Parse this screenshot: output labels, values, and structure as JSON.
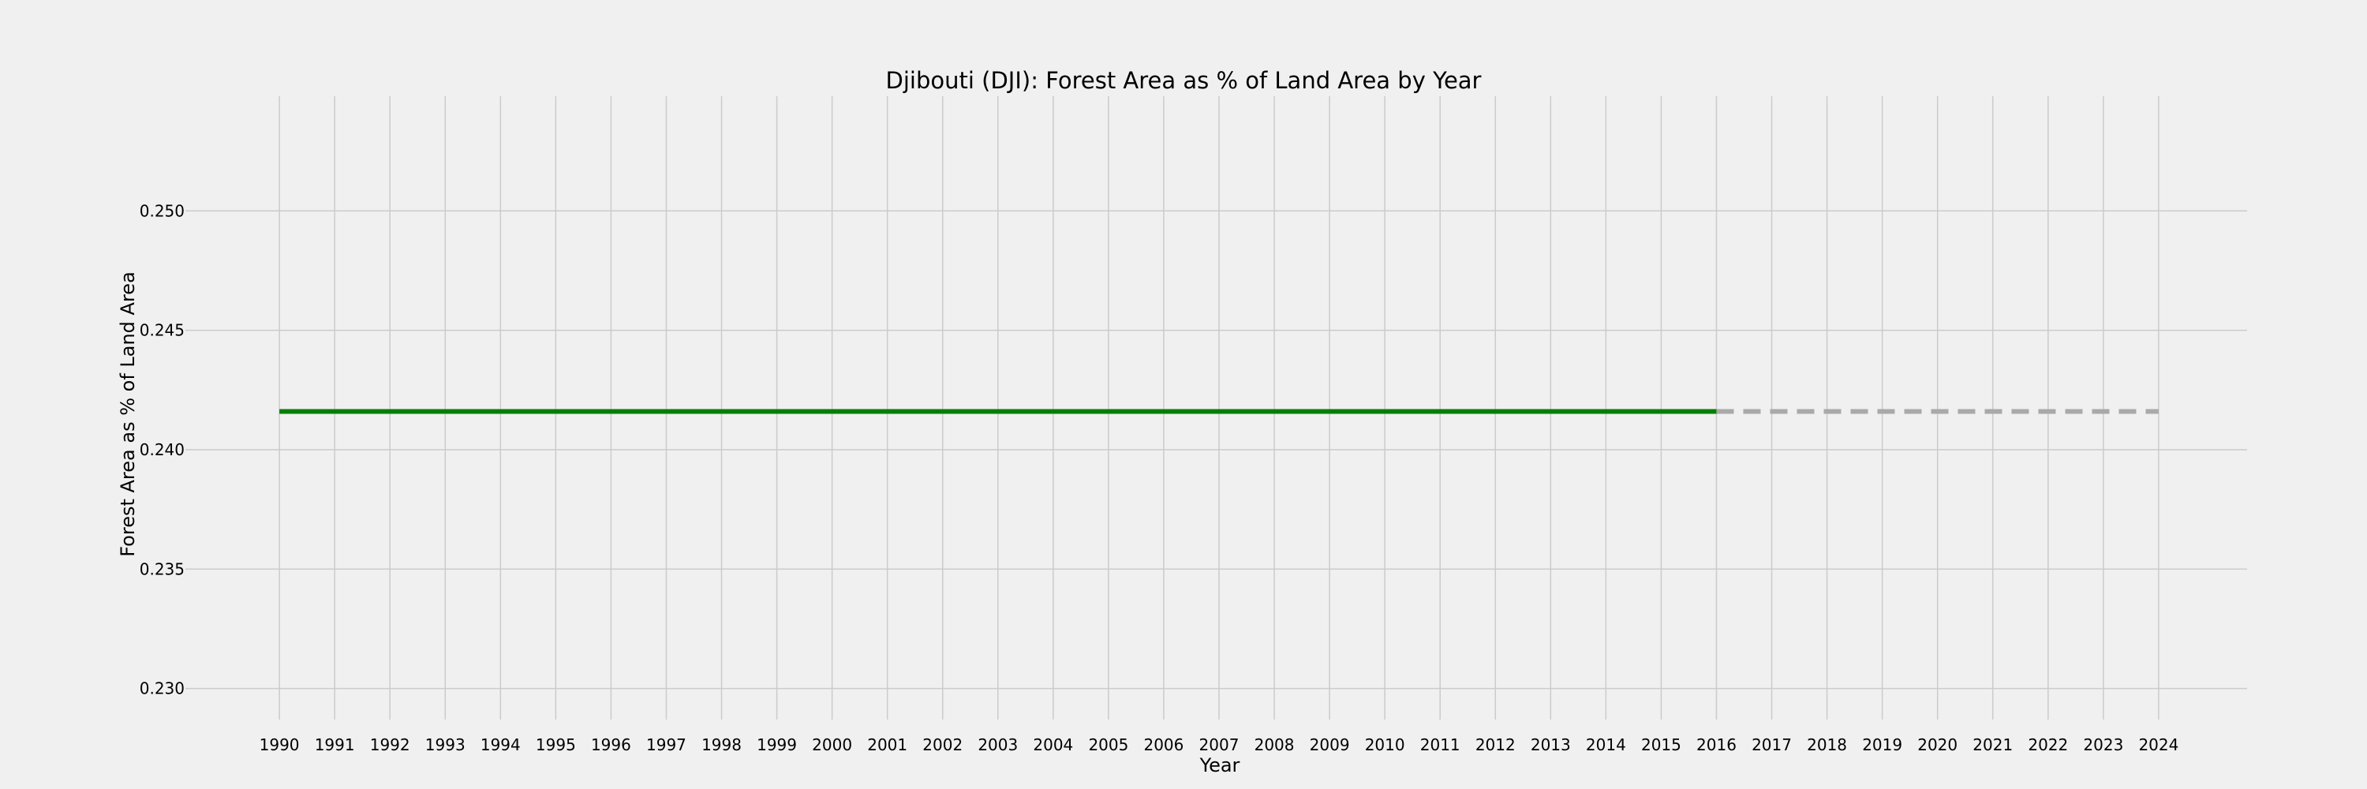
{
  "chart_data": {
    "type": "line",
    "title": "Djibouti (DJI): Forest Area as % of Land Area by Year",
    "xlabel": "Year",
    "ylabel": "Forest Area as % of Land Area",
    "x_ticks": [
      "1990",
      "1991",
      "1992",
      "1993",
      "1994",
      "1995",
      "1996",
      "1997",
      "1998",
      "1999",
      "2000",
      "2001",
      "2002",
      "2003",
      "2004",
      "2005",
      "2006",
      "2007",
      "2008",
      "2009",
      "2010",
      "2011",
      "2012",
      "2013",
      "2014",
      "2015",
      "2016",
      "2017",
      "2018",
      "2019",
      "2020",
      "2021",
      "2022",
      "2023",
      "2024"
    ],
    "y_ticks": [
      "0.230",
      "0.235",
      "0.240",
      "0.245",
      "0.250"
    ],
    "xlim": [
      1988.3,
      2025.6
    ],
    "ylim": [
      0.2287,
      0.2548
    ],
    "grid": true,
    "series": [
      {
        "style": "solid",
        "color": "#008000",
        "x": [
          1990,
          2016
        ],
        "y": [
          0.2416,
          0.2416
        ]
      },
      {
        "style": "dashed",
        "color": "#a9a9a9",
        "x": [
          2016,
          2024
        ],
        "y": [
          0.2416,
          0.2416
        ]
      }
    ]
  }
}
